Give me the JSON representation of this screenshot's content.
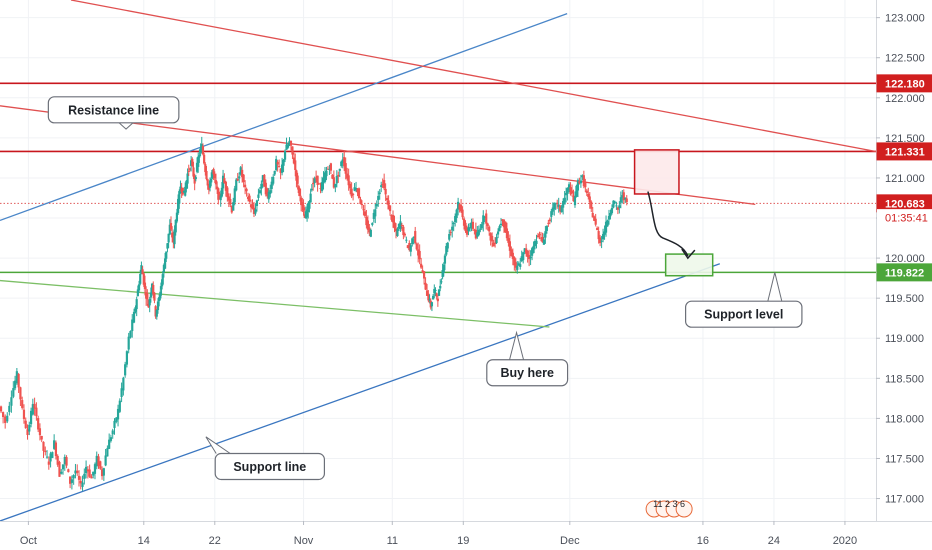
{
  "chart_data": {
    "type": "candlestick",
    "x_axis": {
      "tick_labels": [
        "Oct",
        "14",
        "22",
        "Nov",
        "11",
        "19",
        "Dec",
        "16",
        "24",
        "2020"
      ],
      "ticks": [
        {
          "label": "Oct",
          "day": 0
        },
        {
          "label": "14",
          "day": 13
        },
        {
          "label": "22",
          "day": 21
        },
        {
          "label": "Nov",
          "day": 31
        },
        {
          "label": "11",
          "day": 41
        },
        {
          "label": "19",
          "day": 49
        },
        {
          "label": "Dec",
          "day": 61
        },
        {
          "label": "16",
          "day": 76
        },
        {
          "label": "24",
          "day": 84
        },
        {
          "label": "2020",
          "day": 92
        }
      ],
      "range_days": [
        -3.2,
        95.5
      ]
    },
    "y_axis": {
      "tick_labels": [
        "117.000",
        "117.500",
        "118.000",
        "118.500",
        "119.000",
        "119.500",
        "120.000",
        "120.500",
        "121.000",
        "121.500",
        "122.000",
        "122.500",
        "123.000"
      ],
      "range": [
        116.72,
        123.22
      ]
    },
    "price_labels": [
      {
        "text": "122.180",
        "value": 122.18,
        "color": "#d11f1f"
      },
      {
        "text": "121.331",
        "value": 121.331,
        "color": "#d11f1f"
      },
      {
        "text": "120.683",
        "value": 120.683,
        "color": "#d11f1f"
      },
      {
        "text": "01:35:41",
        "value": 120.505,
        "color": "#d11f1f"
      },
      {
        "text": "119.822",
        "value": 119.822,
        "color": "#4ca63a"
      }
    ],
    "horizontal_levels": [
      {
        "value": 122.18,
        "color": "#c8161d",
        "style": "solid"
      },
      {
        "value": 121.331,
        "color": "#c8161d",
        "style": "solid"
      },
      {
        "value": 119.822,
        "color": "#4ca63a",
        "style": "solid"
      },
      {
        "value": 120.683,
        "color": "#e05a5a",
        "style": "dotted"
      }
    ],
    "trend_lines": [
      {
        "name": "blue-channel-top",
        "color": "#4a86c8",
        "from": [
          -3.2,
          120.47
        ],
        "to": [
          60.7,
          123.05
        ]
      },
      {
        "name": "blue-support-line",
        "color": "#3a76c0",
        "from": [
          -3.2,
          116.72
        ],
        "to": [
          77.9,
          119.93
        ]
      },
      {
        "name": "red-resistance-line",
        "color": "#e05050",
        "from": [
          -3.2,
          121.9
        ],
        "to": [
          81.9,
          120.67
        ]
      },
      {
        "name": "red-upper-line",
        "color": "#e05050",
        "from": [
          4.8,
          123.22
        ],
        "to": [
          95.5,
          121.33
        ]
      },
      {
        "name": "green-line",
        "color": "#7cbf66",
        "from": [
          -3.2,
          119.72
        ],
        "to": [
          58.7,
          119.14
        ]
      }
    ],
    "boxes": [
      {
        "name": "red-target-box",
        "x1": 68.3,
        "x2": 73.3,
        "y_low": 120.8,
        "y_high": 121.35,
        "stroke": "#c8161d",
        "fill": "#fde9ea"
      },
      {
        "name": "green-buy-box",
        "x1": 71.8,
        "x2": 77.1,
        "y_low": 119.78,
        "y_high": 120.05,
        "stroke": "#4ca63a",
        "fill": "#eef8ea"
      }
    ],
    "path_arrow": {
      "from": [
        69.8,
        120.83
      ],
      "via": [
        71.5,
        120.25
      ],
      "to": [
        74.3,
        120.0
      ]
    },
    "annotations": [
      {
        "text": "Resistance line",
        "box": {
          "day": 9.6,
          "value": 121.85
        },
        "pointer": {
          "day": 11.0,
          "value": 121.61
        }
      },
      {
        "text": "Buy here",
        "box": {
          "day": 56.2,
          "value": 118.57
        },
        "pointer": {
          "day": 55.0,
          "value": 119.07
        }
      },
      {
        "text": "Support level",
        "box": {
          "day": 80.6,
          "value": 119.3
        },
        "pointer": {
          "day": 84.1,
          "value": 119.82
        }
      },
      {
        "text": "Support line",
        "box": {
          "day": 27.2,
          "value": 117.4
        },
        "pointer": {
          "day": 20.0,
          "value": 117.77
        }
      }
    ],
    "events_badge": {
      "text": "11 2 3 6",
      "day": 70.5,
      "value": 116.87
    },
    "price_path": [
      [
        -3.2,
        118.15
      ],
      [
        -2.5,
        117.95
      ],
      [
        -1.8,
        118.3
      ],
      [
        -1.2,
        118.55
      ],
      [
        -0.6,
        118.1
      ],
      [
        0.0,
        117.8
      ],
      [
        0.6,
        118.2
      ],
      [
        1.2,
        117.9
      ],
      [
        1.8,
        117.6
      ],
      [
        2.4,
        117.45
      ],
      [
        3.0,
        117.7
      ],
      [
        3.6,
        117.3
      ],
      [
        4.2,
        117.5
      ],
      [
        4.8,
        117.2
      ],
      [
        5.4,
        117.35
      ],
      [
        6.0,
        117.15
      ],
      [
        6.6,
        117.4
      ],
      [
        7.2,
        117.25
      ],
      [
        7.8,
        117.5
      ],
      [
        8.4,
        117.3
      ],
      [
        9.0,
        117.65
      ],
      [
        9.6,
        117.85
      ],
      [
        10.2,
        118.1
      ],
      [
        10.8,
        118.5
      ],
      [
        11.4,
        119.0
      ],
      [
        12.0,
        119.3
      ],
      [
        12.4,
        119.6
      ],
      [
        12.8,
        119.9
      ],
      [
        13.2,
        119.6
      ],
      [
        13.6,
        119.4
      ],
      [
        14.0,
        119.7
      ],
      [
        14.4,
        119.3
      ],
      [
        14.8,
        119.5
      ],
      [
        15.2,
        119.8
      ],
      [
        15.6,
        120.1
      ],
      [
        16.0,
        120.4
      ],
      [
        16.4,
        120.2
      ],
      [
        16.8,
        120.6
      ],
      [
        17.2,
        120.9
      ],
      [
        17.6,
        120.8
      ],
      [
        18.0,
        121.05
      ],
      [
        18.4,
        121.2
      ],
      [
        18.8,
        120.95
      ],
      [
        19.2,
        121.25
      ],
      [
        19.6,
        121.4
      ],
      [
        20.0,
        121.1
      ],
      [
        20.4,
        120.85
      ],
      [
        20.8,
        121.1
      ],
      [
        21.2,
        120.9
      ],
      [
        21.6,
        120.7
      ],
      [
        22.0,
        121.0
      ],
      [
        22.5,
        120.8
      ],
      [
        23.0,
        120.6
      ],
      [
        23.5,
        120.95
      ],
      [
        24.0,
        121.1
      ],
      [
        24.5,
        120.85
      ],
      [
        25.0,
        120.7
      ],
      [
        25.5,
        120.55
      ],
      [
        26.0,
        120.8
      ],
      [
        26.5,
        121.0
      ],
      [
        27.0,
        120.75
      ],
      [
        27.5,
        120.95
      ],
      [
        28.0,
        121.2
      ],
      [
        28.5,
        121.05
      ],
      [
        29.0,
        121.35
      ],
      [
        29.5,
        121.45
      ],
      [
        30.0,
        121.2
      ],
      [
        30.4,
        120.9
      ],
      [
        30.8,
        120.7
      ],
      [
        31.2,
        120.5
      ],
      [
        31.6,
        120.65
      ],
      [
        32.0,
        120.9
      ],
      [
        32.5,
        121.0
      ],
      [
        33.0,
        120.85
      ],
      [
        33.5,
        121.05
      ],
      [
        34.0,
        121.15
      ],
      [
        34.5,
        120.9
      ],
      [
        35.0,
        121.05
      ],
      [
        35.5,
        121.25
      ],
      [
        36.0,
        121.0
      ],
      [
        36.5,
        120.8
      ],
      [
        37.0,
        120.9
      ],
      [
        37.5,
        120.7
      ],
      [
        38.0,
        120.5
      ],
      [
        38.5,
        120.3
      ],
      [
        39.0,
        120.55
      ],
      [
        39.5,
        120.8
      ],
      [
        40.0,
        120.95
      ],
      [
        40.5,
        120.7
      ],
      [
        41.0,
        120.5
      ],
      [
        41.5,
        120.3
      ],
      [
        42.0,
        120.45
      ],
      [
        42.5,
        120.25
      ],
      [
        43.0,
        120.1
      ],
      [
        43.5,
        120.3
      ],
      [
        44.0,
        120.05
      ],
      [
        44.5,
        119.8
      ],
      [
        45.0,
        119.55
      ],
      [
        45.4,
        119.4
      ],
      [
        45.8,
        119.6
      ],
      [
        46.2,
        119.5
      ],
      [
        46.6,
        119.75
      ],
      [
        47.0,
        120.05
      ],
      [
        47.5,
        120.3
      ],
      [
        48.0,
        120.45
      ],
      [
        48.5,
        120.7
      ],
      [
        49.0,
        120.5
      ],
      [
        49.5,
        120.3
      ],
      [
        50.0,
        120.45
      ],
      [
        50.5,
        120.25
      ],
      [
        51.0,
        120.4
      ],
      [
        51.5,
        120.55
      ],
      [
        52.0,
        120.3
      ],
      [
        52.5,
        120.15
      ],
      [
        53.0,
        120.35
      ],
      [
        53.5,
        120.5
      ],
      [
        54.0,
        120.25
      ],
      [
        54.5,
        120.05
      ],
      [
        55.0,
        119.85
      ],
      [
        55.5,
        119.95
      ],
      [
        56.0,
        120.1
      ],
      [
        56.5,
        120.0
      ],
      [
        57.0,
        120.15
      ],
      [
        57.5,
        120.3
      ],
      [
        58.0,
        120.2
      ],
      [
        58.5,
        120.4
      ],
      [
        59.0,
        120.55
      ],
      [
        59.5,
        120.7
      ],
      [
        60.0,
        120.6
      ],
      [
        60.5,
        120.75
      ],
      [
        61.0,
        120.9
      ],
      [
        61.5,
        120.7
      ],
      [
        62.0,
        120.95
      ],
      [
        62.5,
        121.0
      ],
      [
        63.0,
        120.8
      ],
      [
        63.5,
        120.6
      ],
      [
        64.0,
        120.4
      ],
      [
        64.5,
        120.2
      ],
      [
        65.0,
        120.35
      ],
      [
        65.5,
        120.55
      ],
      [
        66.0,
        120.7
      ],
      [
        66.5,
        120.6
      ],
      [
        67.0,
        120.8
      ],
      [
        67.5,
        120.68
      ]
    ]
  }
}
